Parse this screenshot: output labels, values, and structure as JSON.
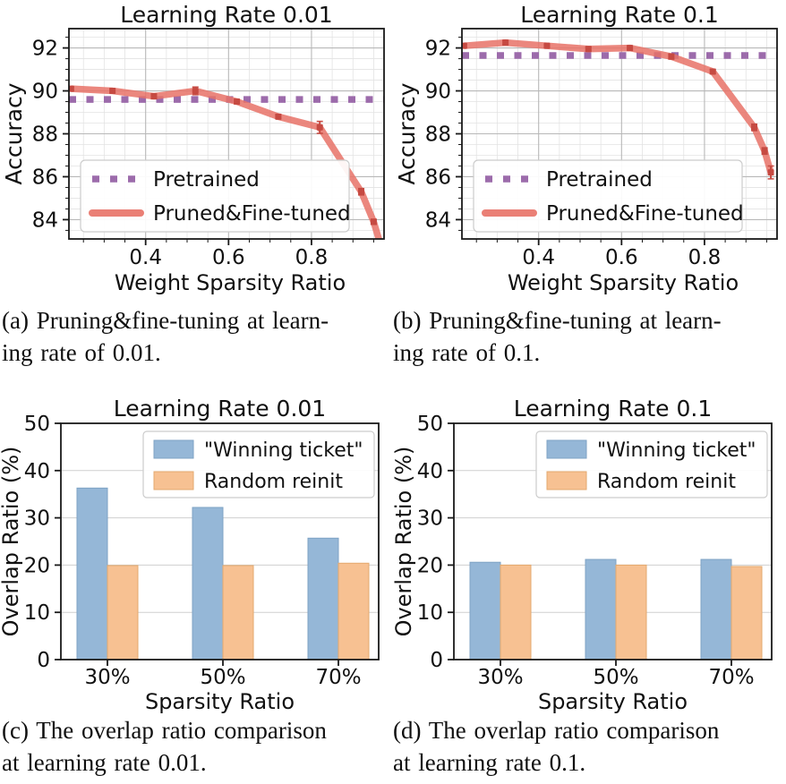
{
  "captions": {
    "a": {
      "lines": [
        "(a) Pruning&fine-tuning at learn-",
        "ing rate of 0.01."
      ]
    },
    "b": {
      "lines": [
        "(b) Pruning&fine-tuning at learn-",
        "ing rate of 0.1."
      ]
    },
    "c": {
      "lines": [
        "(c) The overlap ratio comparison",
        "at learning rate 0.01."
      ]
    },
    "d": {
      "lines": [
        "(d) The overlap ratio comparison",
        "at learning rate 0.1."
      ]
    }
  },
  "style": {
    "pretrained_color": "#9c6bab",
    "pruned_line_color": "#e87267",
    "pruned_marker_color": "#c64a42",
    "winning_fill": "#95b7d7",
    "winning_edge": "#7fa3c4",
    "random_fill": "#f7c192",
    "random_edge": "#e3a96f",
    "grid_major": "#b8b8b8",
    "grid_minor": "#e3e3e3",
    "bar_grid": "#cfcfcf",
    "spine": "#1a1a1a",
    "text": "#111111",
    "legend_border": "#cccccc",
    "legend_fill": "rgba(255,255,255,0.92)"
  },
  "chart_data": [
    {
      "id": "a",
      "type": "line",
      "title": "Learning Rate 0.01",
      "xlabel": "Weight Sparsity Ratio",
      "ylabel": "Accuracy",
      "xlim": [
        0.215,
        0.975
      ],
      "ylim": [
        83.1,
        92.9
      ],
      "xticks": [
        0.4,
        0.6,
        0.8
      ],
      "xtick_labels": [
        "0.4",
        "0.6",
        "0.8"
      ],
      "yticks": [
        84,
        86,
        88,
        90,
        92
      ],
      "minor_x_step": 0.05,
      "minor_y_step": 0.5,
      "grid": true,
      "legend_position": "lower left",
      "series": [
        {
          "name": "Pretrained",
          "style": "dotted-thick",
          "constant_y": 89.6
        },
        {
          "name": "Pruned&Fine-tuned",
          "style": "solid-thick",
          "x": [
            0.22,
            0.32,
            0.42,
            0.52,
            0.62,
            0.72,
            0.82,
            0.92,
            0.95,
            0.97
          ],
          "y": [
            90.1,
            90.0,
            89.75,
            90.0,
            89.5,
            88.8,
            88.3,
            85.3,
            83.9,
            82.6
          ],
          "yerr": [
            0.08,
            0.1,
            0.12,
            0.18,
            0.1,
            0.1,
            0.28,
            0.15,
            0.12,
            0.1
          ]
        }
      ]
    },
    {
      "id": "b",
      "type": "line",
      "title": "Learning Rate 0.1",
      "xlabel": "Weight Sparsity Ratio",
      "ylabel": "Accuracy",
      "xlim": [
        0.215,
        0.975
      ],
      "ylim": [
        83.1,
        92.9
      ],
      "xticks": [
        0.4,
        0.6,
        0.8
      ],
      "xtick_labels": [
        "0.4",
        "0.6",
        "0.8"
      ],
      "yticks": [
        84,
        86,
        88,
        90,
        92
      ],
      "minor_x_step": 0.05,
      "minor_y_step": 0.5,
      "grid": true,
      "legend_position": "lower left",
      "series": [
        {
          "name": "Pretrained",
          "style": "dotted-thick",
          "constant_y": 91.65
        },
        {
          "name": "Pruned&Fine-tuned",
          "style": "solid-thick",
          "x": [
            0.22,
            0.32,
            0.42,
            0.52,
            0.62,
            0.72,
            0.82,
            0.92,
            0.945,
            0.96
          ],
          "y": [
            92.1,
            92.25,
            92.1,
            91.95,
            92.0,
            91.6,
            90.9,
            88.3,
            87.2,
            86.2
          ],
          "yerr": [
            0.08,
            0.1,
            0.08,
            0.1,
            0.1,
            0.12,
            0.1,
            0.15,
            0.15,
            0.3
          ]
        }
      ]
    },
    {
      "id": "c",
      "type": "bar",
      "title": "Learning Rate 0.01",
      "xlabel": "Sparsity Ratio",
      "ylabel": "Overlap Ratio (%)",
      "categories": [
        "30%",
        "50%",
        "70%"
      ],
      "ylim": [
        0,
        50
      ],
      "yticks": [
        0,
        10,
        20,
        30,
        40,
        50
      ],
      "legend_position": "upper right",
      "series": [
        {
          "name": "\"Winning ticket\"",
          "values": [
            36.3,
            32.2,
            25.7
          ],
          "role": "winning"
        },
        {
          "name": "Random reinit",
          "values": [
            19.9,
            19.9,
            20.4
          ],
          "role": "random"
        }
      ]
    },
    {
      "id": "d",
      "type": "bar",
      "title": "Learning Rate 0.1",
      "xlabel": "Sparsity Ratio",
      "ylabel": "Overlap Ratio (%)",
      "categories": [
        "30%",
        "50%",
        "70%"
      ],
      "ylim": [
        0,
        50
      ],
      "yticks": [
        0,
        10,
        20,
        30,
        40,
        50
      ],
      "legend_position": "upper right",
      "series": [
        {
          "name": "\"Winning ticket\"",
          "values": [
            20.6,
            21.2,
            21.2
          ],
          "role": "winning"
        },
        {
          "name": "Random reinit",
          "values": [
            20.0,
            20.0,
            19.7
          ],
          "role": "random"
        }
      ]
    }
  ]
}
